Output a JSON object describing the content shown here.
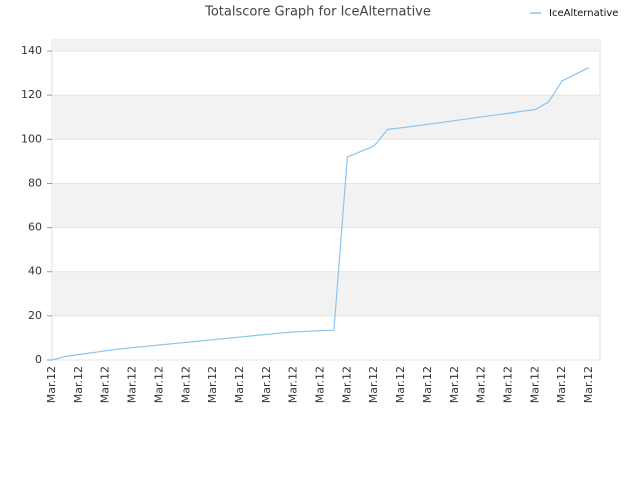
{
  "chart_data": {
    "type": "line",
    "title": "Totalscore Graph for IceAlternative",
    "categories": [
      "Mar.12",
      null,
      "Mar.12",
      null,
      "Mar.12",
      null,
      "Mar.12",
      null,
      "Mar.12",
      null,
      "Mar.12",
      null,
      "Mar.12",
      null,
      "Mar.12",
      null,
      "Mar.12",
      null,
      "Mar.12",
      null,
      "Mar.12",
      null,
      "Mar.12",
      null,
      "Mar.12",
      null,
      "Mar.12",
      null,
      "Mar.12",
      null,
      "Mar.12",
      null,
      "Mar.12",
      null,
      "Mar.12",
      null,
      "Mar.12",
      null,
      "Mar.12",
      null,
      "Mar.12"
    ],
    "series": [
      {
        "name": "IceAlternative",
        "color": "#8cc4ec",
        "values": [
          0,
          1.6,
          2.5,
          3.3,
          4.2,
          5.0,
          5.6,
          6.2,
          6.8,
          7.4,
          8.0,
          8.6,
          9.2,
          9.8,
          10.4,
          11.0,
          11.6,
          12.2,
          12.7,
          13.0,
          13.3,
          13.5,
          92,
          94.5,
          97,
          104.5,
          105.2,
          106,
          106.8,
          107.6,
          108.5,
          109.3,
          110.2,
          111,
          111.8,
          112.7,
          113.5,
          117,
          126.5,
          129.5,
          132.5
        ]
      }
    ],
    "ylim": [
      0,
      145
    ],
    "yticks": [
      0,
      20,
      40,
      60,
      80,
      100,
      120,
      140
    ],
    "grid": true,
    "legend": "top-right"
  }
}
